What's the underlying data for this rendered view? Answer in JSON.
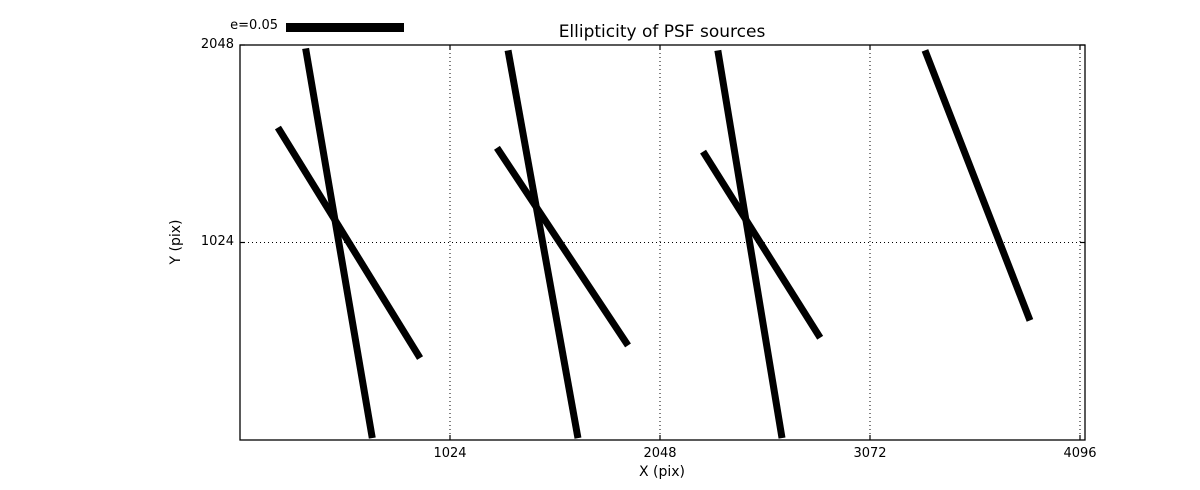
{
  "page": {
    "background": "#ffffff"
  },
  "chart_data": {
    "type": "line",
    "subtype": "whisker-segments",
    "title": "Ellipticity of PSF sources",
    "xlabel": "X (pix)",
    "ylabel": "Y (pix)",
    "xlim": [
      0,
      4120
    ],
    "ylim": [
      0,
      2048
    ],
    "xticks": [
      1024,
      2048,
      3072,
      4096
    ],
    "yticks": [
      2048,
      1024
    ],
    "grid": {
      "style": "dotted",
      "color": "#000000",
      "on": true
    },
    "legend": {
      "label": "e=0.05",
      "position": "above-axes-top-left",
      "handle": "thick-black-line"
    },
    "series_color": "#000000",
    "series_line_width": 7,
    "segments": [
      {
        "x1": 320,
        "y1": 2030,
        "x2": 645,
        "y2": 10
      },
      {
        "x1": 185,
        "y1": 1620,
        "x2": 878,
        "y2": 425
      },
      {
        "x1": 1307,
        "y1": 2020,
        "x2": 1648,
        "y2": 10
      },
      {
        "x1": 1253,
        "y1": 1515,
        "x2": 1892,
        "y2": 490
      },
      {
        "x1": 2330,
        "y1": 2020,
        "x2": 2643,
        "y2": 10
      },
      {
        "x1": 2258,
        "y1": 1495,
        "x2": 2829,
        "y2": 530
      },
      {
        "x1": 3340,
        "y1": 2020,
        "x2": 3852,
        "y2": 620
      }
    ]
  }
}
